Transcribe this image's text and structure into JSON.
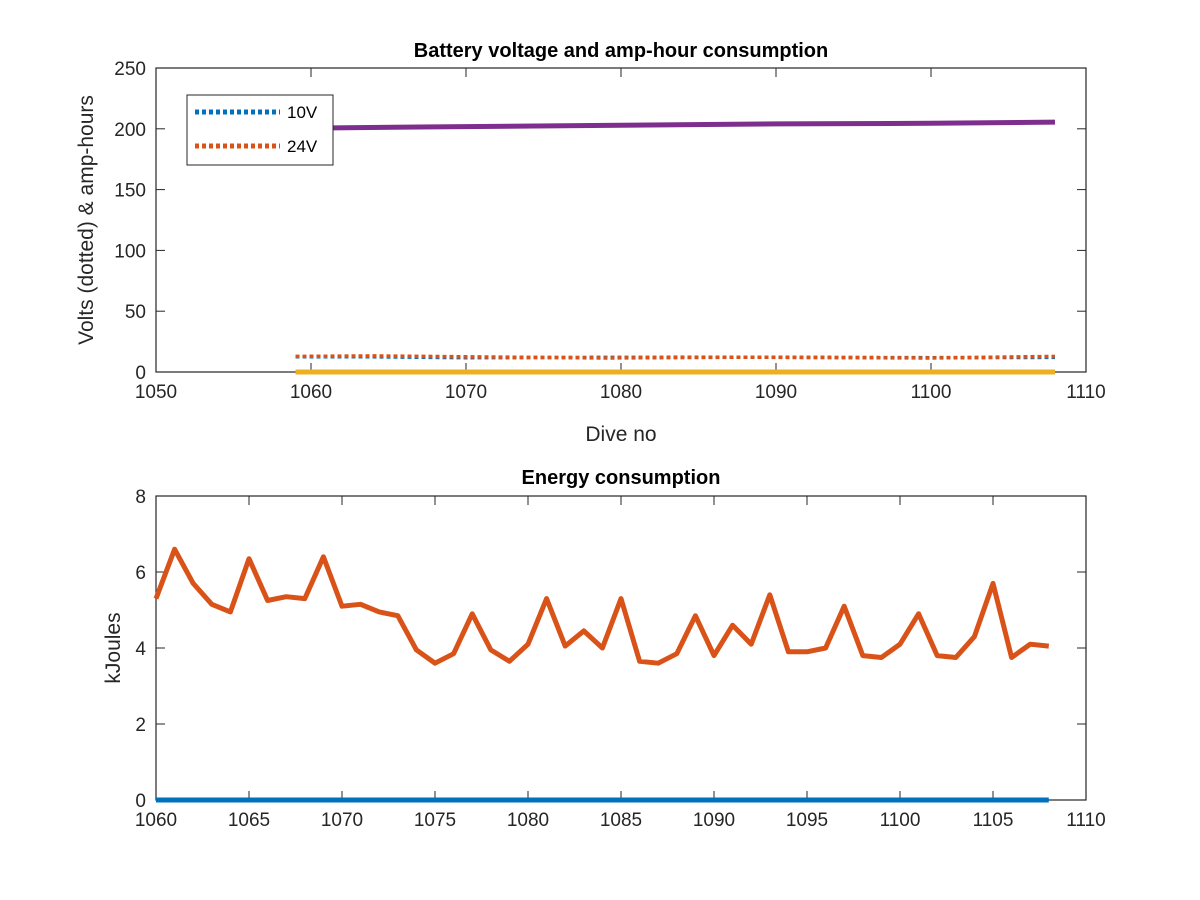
{
  "chart_data": [
    {
      "type": "line",
      "title": "Battery voltage and amp-hour consumption",
      "xlabel": "Dive no",
      "ylabel": "Volts (dotted) & amp-hours",
      "xlim": [
        1050,
        1110
      ],
      "ylim": [
        0,
        250
      ],
      "xticks": [
        1050,
        1060,
        1070,
        1080,
        1090,
        1100,
        1110
      ],
      "yticks": [
        0,
        50,
        100,
        150,
        200,
        250
      ],
      "grid": false,
      "legend_position": "top-left",
      "series": [
        {
          "name": "10V",
          "style": "dotted",
          "color": "#0072BD",
          "x": [
            1059,
            1064,
            1070,
            1079,
            1088,
            1100,
            1108
          ],
          "y": [
            12.5,
            12.5,
            11.8,
            12.0,
            12.2,
            11.8,
            12.0
          ]
        },
        {
          "name": "24V",
          "style": "dotted",
          "color": "#D95319",
          "x": [
            1059,
            1064,
            1070,
            1079,
            1088,
            1100,
            1108
          ],
          "y": [
            12.8,
            13.2,
            12.5,
            11.5,
            12.2,
            11.5,
            12.8
          ]
        },
        {
          "name": "",
          "style": "solid",
          "color": "#EDB120",
          "x": [
            1059,
            1108
          ],
          "y": [
            0,
            0
          ]
        },
        {
          "name": "",
          "style": "solid",
          "color": "#7E2F8E",
          "x": [
            1059,
            1067,
            1080,
            1090,
            1100,
            1108
          ],
          "y": [
            200.5,
            201.5,
            203,
            204,
            204.5,
            205.5
          ]
        }
      ]
    },
    {
      "type": "line",
      "title": "Energy consumption",
      "xlabel": "",
      "ylabel": "kJoules",
      "xlim": [
        1060,
        1110
      ],
      "ylim": [
        0,
        8
      ],
      "xticks": [
        1060,
        1065,
        1070,
        1075,
        1080,
        1085,
        1090,
        1095,
        1100,
        1105,
        1110
      ],
      "yticks": [
        0,
        2,
        4,
        6,
        8
      ],
      "grid": false,
      "series": [
        {
          "name": "",
          "style": "solid",
          "color": "#D95319",
          "x": [
            1060,
            1061,
            1062,
            1063,
            1064,
            1065,
            1066,
            1067,
            1068,
            1069,
            1070,
            1071,
            1072,
            1073,
            1074,
            1075,
            1076,
            1077,
            1078,
            1079,
            1080,
            1081,
            1082,
            1083,
            1084,
            1085,
            1086,
            1087,
            1088,
            1089,
            1090,
            1091,
            1092,
            1093,
            1094,
            1095,
            1096,
            1097,
            1098,
            1099,
            1100,
            1101,
            1102,
            1103,
            1104,
            1105,
            1106,
            1107,
            1108
          ],
          "y": [
            5.3,
            6.6,
            5.7,
            5.15,
            4.95,
            6.35,
            5.25,
            5.35,
            5.3,
            6.4,
            5.1,
            5.15,
            4.95,
            4.85,
            3.95,
            3.6,
            3.85,
            4.9,
            3.95,
            3.65,
            4.1,
            5.3,
            4.05,
            4.45,
            4.0,
            5.3,
            3.65,
            3.6,
            3.85,
            4.85,
            3.8,
            4.6,
            4.1,
            5.4,
            3.9,
            3.9,
            4.0,
            5.1,
            3.8,
            3.75,
            4.1,
            4.9,
            3.8,
            3.75,
            4.3,
            5.7,
            3.75,
            4.1,
            4.05
          ]
        },
        {
          "name": "",
          "style": "solid",
          "color": "#0072BD",
          "x": [
            1060,
            1108
          ],
          "y": [
            0,
            0
          ]
        }
      ]
    }
  ]
}
